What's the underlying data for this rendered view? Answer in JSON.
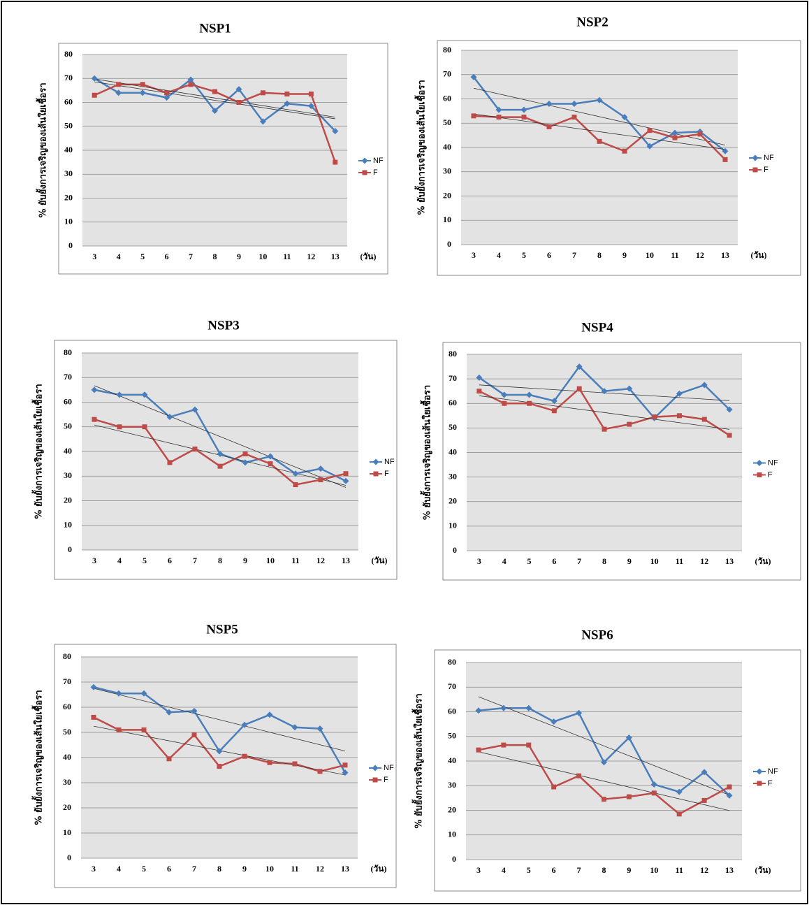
{
  "chart_data": [
    {
      "type": "line",
      "title": "NSP1",
      "ylabel": "% ยับยั้งการเจริญของเส้นใยเชื้อรา",
      "xlabel": "(วัน)",
      "categories": [
        "3",
        "4",
        "5",
        "6",
        "7",
        "8",
        "9",
        "10",
        "11",
        "12",
        "13"
      ],
      "series": [
        {
          "name": "NF",
          "color": "#4a7ebb",
          "marker": "diamond",
          "values": [
            70,
            64,
            64,
            62,
            69.5,
            56.5,
            65.5,
            52,
            59.5,
            58.5,
            48
          ]
        },
        {
          "name": "F",
          "color": "#be4b48",
          "marker": "square",
          "values": [
            63,
            67.5,
            67.5,
            64,
            67.5,
            64.5,
            60,
            64,
            63.5,
            63.5,
            35
          ]
        }
      ],
      "ylim": [
        0,
        80
      ],
      "yticks": [
        0,
        10,
        20,
        30,
        40,
        50,
        60,
        70,
        80
      ],
      "grid": true,
      "trendline": true,
      "legend": "right"
    },
    {
      "type": "line",
      "title": "NSP2",
      "ylabel": "% ยับยั้งการเจริญของเส้นใยเชื้อรา",
      "xlabel": "(วัน)",
      "categories": [
        "3",
        "4",
        "5",
        "6",
        "7",
        "8",
        "9",
        "10",
        "11",
        "12",
        "13"
      ],
      "series": [
        {
          "name": "NF",
          "color": "#4a7ebb",
          "marker": "diamond",
          "values": [
            69,
            55.5,
            55.5,
            58,
            58,
            59.5,
            52.5,
            40.5,
            46,
            46.5,
            38.5
          ]
        },
        {
          "name": "F",
          "color": "#be4b48",
          "marker": "square",
          "values": [
            53,
            52.5,
            52.5,
            48.5,
            52.5,
            42.5,
            38.5,
            47,
            44,
            45.5,
            35
          ]
        }
      ],
      "ylim": [
        0,
        80
      ],
      "yticks": [
        0,
        10,
        20,
        30,
        40,
        50,
        60,
        70,
        80
      ],
      "grid": true,
      "trendline": true,
      "legend": "right"
    },
    {
      "type": "line",
      "title": "NSP3",
      "ylabel": "% ยับยั้งการเจริญของเส้นใยเชื้อรา",
      "xlabel": "(วัน)",
      "categories": [
        "3",
        "4",
        "5",
        "6",
        "7",
        "8",
        "9",
        "10",
        "11",
        "12",
        "13"
      ],
      "series": [
        {
          "name": "NF",
          "color": "#4a7ebb",
          "marker": "diamond",
          "values": [
            65,
            63,
            63,
            54,
            57,
            39,
            35.5,
            38,
            31,
            33,
            28
          ]
        },
        {
          "name": "F",
          "color": "#be4b48",
          "marker": "square",
          "values": [
            53,
            50,
            50,
            35.5,
            41,
            34,
            39,
            35,
            26.5,
            28.5,
            31
          ]
        }
      ],
      "ylim": [
        0,
        80
      ],
      "yticks": [
        0,
        10,
        20,
        30,
        40,
        50,
        60,
        70,
        80
      ],
      "grid": true,
      "trendline": true,
      "legend": "right"
    },
    {
      "type": "line",
      "title": "NSP4",
      "ylabel": "% ยับยั้งการเจริญของเส้นใยเชื้อรา",
      "xlabel": "(วัน)",
      "categories": [
        "3",
        "4",
        "5",
        "6",
        "7",
        "8",
        "9",
        "10",
        "11",
        "12",
        "13"
      ],
      "series": [
        {
          "name": "NF",
          "color": "#4a7ebb",
          "marker": "diamond",
          "values": [
            70.5,
            63.5,
            63.5,
            61,
            75,
            65,
            66,
            54,
            64,
            67.5,
            57.5
          ]
        },
        {
          "name": "F",
          "color": "#be4b48",
          "marker": "square",
          "values": [
            65,
            60,
            60,
            57,
            66,
            49.5,
            51.5,
            54.5,
            55,
            53.5,
            47
          ]
        }
      ],
      "ylim": [
        0,
        80
      ],
      "yticks": [
        0,
        10,
        20,
        30,
        40,
        50,
        60,
        70,
        80
      ],
      "grid": true,
      "trendline": true,
      "legend": "right"
    },
    {
      "type": "line",
      "title": "NSP5",
      "ylabel": "% ยับยั้งการเจริญของเส้นใยเชื้อรา",
      "xlabel": "(วัน)",
      "categories": [
        "3",
        "4",
        "5",
        "6",
        "7",
        "8",
        "9",
        "10",
        "11",
        "12",
        "13"
      ],
      "series": [
        {
          "name": "NF",
          "color": "#4a7ebb",
          "marker": "diamond",
          "values": [
            68,
            65.5,
            65.5,
            58,
            58.5,
            42.5,
            53,
            57,
            52,
            51.5,
            34
          ]
        },
        {
          "name": "F",
          "color": "#be4b48",
          "marker": "square",
          "values": [
            56,
            51,
            51,
            39.5,
            49,
            36.5,
            40.5,
            38,
            37.5,
            34.5,
            37
          ]
        }
      ],
      "ylim": [
        0,
        80
      ],
      "yticks": [
        0,
        10,
        20,
        30,
        40,
        50,
        60,
        70,
        80
      ],
      "grid": true,
      "trendline": true,
      "legend": "right"
    },
    {
      "type": "line",
      "title": "NSP6",
      "ylabel": "% ยับยั้งการเจริญของเส้นใยเชื้อรา",
      "xlabel": "(วัน)",
      "categories": [
        "3",
        "4",
        "5",
        "6",
        "7",
        "8",
        "9",
        "10",
        "11",
        "12",
        "13"
      ],
      "series": [
        {
          "name": "NF",
          "color": "#4a7ebb",
          "marker": "diamond",
          "values": [
            60.5,
            61.5,
            61.5,
            56,
            59.5,
            39.5,
            49.5,
            30.5,
            27.5,
            35.5,
            26
          ]
        },
        {
          "name": "F",
          "color": "#be4b48",
          "marker": "square",
          "values": [
            44.5,
            46.5,
            46.5,
            29.5,
            34,
            24.5,
            25.5,
            27,
            18.5,
            24,
            29.5
          ]
        }
      ],
      "ylim": [
        0,
        80
      ],
      "yticks": [
        0,
        10,
        20,
        30,
        40,
        50,
        60,
        70,
        80
      ],
      "grid": true,
      "trendline": true,
      "legend": "right"
    }
  ]
}
